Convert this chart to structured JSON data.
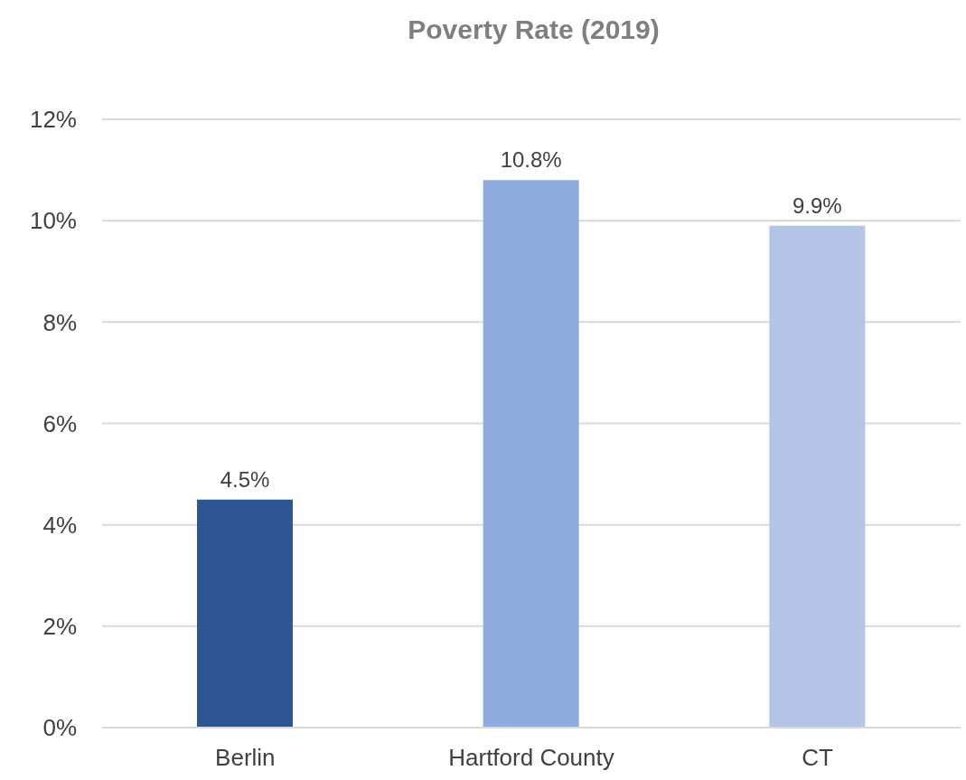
{
  "chart_data": {
    "type": "bar",
    "title": "Poverty Rate (2019)",
    "categories": [
      "Berlin",
      "Hartford County",
      "CT"
    ],
    "values": [
      4.5,
      10.8,
      9.9
    ],
    "colors": [
      "#2e5594",
      "#8eacdd",
      "#b3c6e7"
    ],
    "value_labels": [
      "4.5%",
      "10.8%",
      "9.9%"
    ],
    "ylim": [
      0,
      12
    ],
    "yticks": [
      {
        "value": 0,
        "label": "0%"
      },
      {
        "value": 2,
        "label": "2%"
      },
      {
        "value": 4,
        "label": "4%"
      },
      {
        "value": 6,
        "label": "6%"
      },
      {
        "value": 8,
        "label": "8%"
      },
      {
        "value": 10,
        "label": "10%"
      },
      {
        "value": 12,
        "label": "12%"
      }
    ],
    "grid": "y",
    "legend": false
  }
}
